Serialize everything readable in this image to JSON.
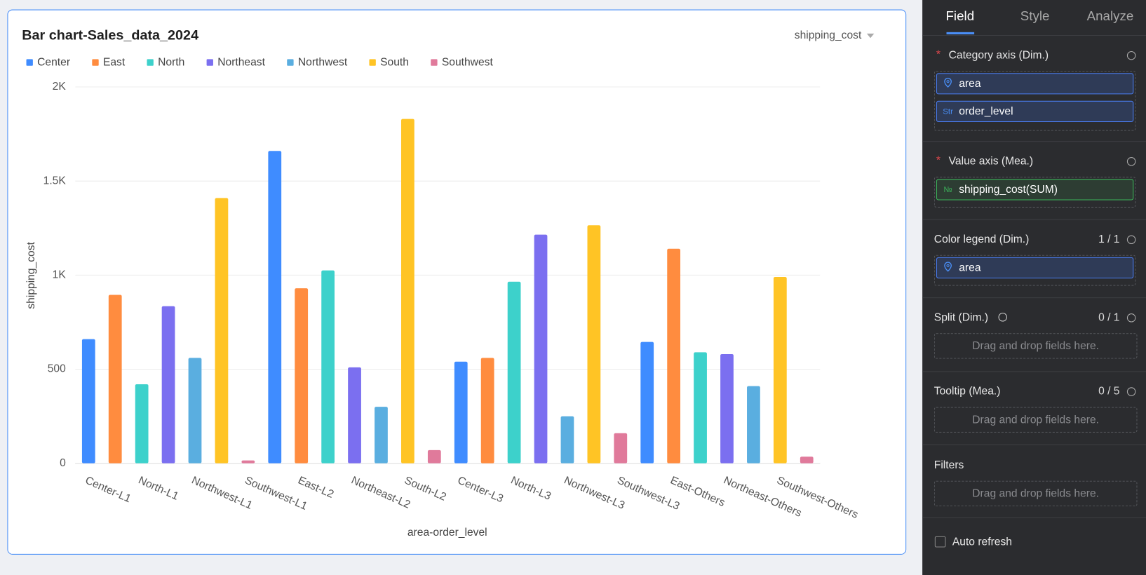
{
  "chart_data": {
    "type": "bar",
    "title": "Bar chart-Sales_data_2024",
    "measure_selector": "shipping_cost",
    "x_label": "area-order_level",
    "y_label": "shipping_cost",
    "categories": [
      "Center-L1",
      null,
      "North-L1",
      null,
      "Northwest-L1",
      null,
      "Southwest-L1",
      null,
      "East-L2",
      null,
      "Northeast-L2",
      null,
      "South-L2",
      null,
      "Center-L3",
      null,
      "North-L3",
      null,
      "Northwest-L3",
      null,
      "Southwest-L3",
      null,
      "East-Others",
      null,
      "Northeast-Others",
      null,
      "Southwest-Others",
      null
    ],
    "series": [
      {
        "name": "Center",
        "color": "#3f8cff",
        "values": [
          660,
          null,
          null,
          null,
          null,
          null,
          null,
          1660,
          null,
          null,
          null,
          null,
          null,
          null,
          540,
          null,
          null,
          null,
          null,
          null,
          null,
          645,
          null,
          null,
          null,
          null,
          null,
          null
        ]
      },
      {
        "name": "East",
        "color": "#ff8c3f",
        "values": [
          null,
          895,
          null,
          null,
          null,
          null,
          null,
          null,
          930,
          null,
          null,
          null,
          null,
          null,
          null,
          560,
          null,
          null,
          null,
          null,
          null,
          null,
          1140,
          null,
          null,
          null,
          null,
          null
        ]
      },
      {
        "name": "North",
        "color": "#3dd1cb",
        "values": [
          null,
          null,
          420,
          null,
          null,
          null,
          null,
          null,
          null,
          1025,
          null,
          null,
          null,
          null,
          null,
          null,
          965,
          null,
          null,
          null,
          null,
          null,
          null,
          590,
          null,
          null,
          null,
          null
        ]
      },
      {
        "name": "Northeast",
        "color": "#7b6ff0",
        "values": [
          null,
          null,
          null,
          835,
          null,
          null,
          null,
          null,
          null,
          null,
          510,
          null,
          null,
          null,
          null,
          null,
          null,
          1215,
          null,
          null,
          null,
          null,
          null,
          null,
          580,
          null,
          null,
          null
        ]
      },
      {
        "name": "Northwest",
        "color": "#5aaee0",
        "values": [
          null,
          null,
          null,
          null,
          560,
          null,
          null,
          null,
          null,
          null,
          null,
          300,
          null,
          null,
          null,
          null,
          null,
          null,
          250,
          null,
          null,
          null,
          null,
          null,
          null,
          410,
          null,
          null
        ]
      },
      {
        "name": "South",
        "color": "#ffc425",
        "values": [
          null,
          null,
          null,
          null,
          null,
          1410,
          null,
          null,
          null,
          null,
          null,
          null,
          1830,
          null,
          null,
          null,
          null,
          null,
          null,
          1265,
          null,
          null,
          null,
          null,
          null,
          null,
          990,
          null
        ]
      },
      {
        "name": "Southwest",
        "color": "#e07a9b",
        "values": [
          null,
          null,
          null,
          null,
          null,
          null,
          15,
          null,
          null,
          null,
          null,
          null,
          null,
          70,
          null,
          null,
          null,
          null,
          null,
          null,
          160,
          null,
          null,
          null,
          null,
          null,
          null,
          35
        ]
      }
    ],
    "ylim": [
      0,
      2000
    ],
    "yticks": [
      0,
      500,
      {
        "value": 1000,
        "label": "1K"
      },
      {
        "value": 1500,
        "label": "1.5K"
      },
      {
        "value": 2000,
        "label": "2K"
      }
    ],
    "grid": true,
    "legend": "top-left"
  },
  "panel": {
    "tabs": [
      "Field",
      "Style",
      "Analyze"
    ],
    "category_axis": {
      "required": "*",
      "title": "Category axis (Dim.)",
      "fields": [
        {
          "icon": "",
          "name": "area"
        },
        {
          "icon": "Str",
          "name": "order_level"
        }
      ]
    },
    "value_axis": {
      "required": "*",
      "title": "Value axis (Mea.)",
      "fields": [
        {
          "icon": "№",
          "name": "shipping_cost(SUM)"
        }
      ]
    },
    "color_legend": {
      "title": "Color legend (Dim.)",
      "count": "1 / 1",
      "fields": [
        {
          "name": "area"
        }
      ]
    },
    "split": {
      "title": "Split (Dim.)",
      "count": "0 / 1",
      "placeholder": "Drag and drop fields here."
    },
    "tooltip": {
      "title": "Tooltip (Mea.)",
      "count": "0 / 5",
      "placeholder": "Drag and drop fields here."
    },
    "filters": {
      "title": "Filters",
      "placeholder": "Drag and drop fields here."
    },
    "auto_refresh": "Auto refresh"
  }
}
